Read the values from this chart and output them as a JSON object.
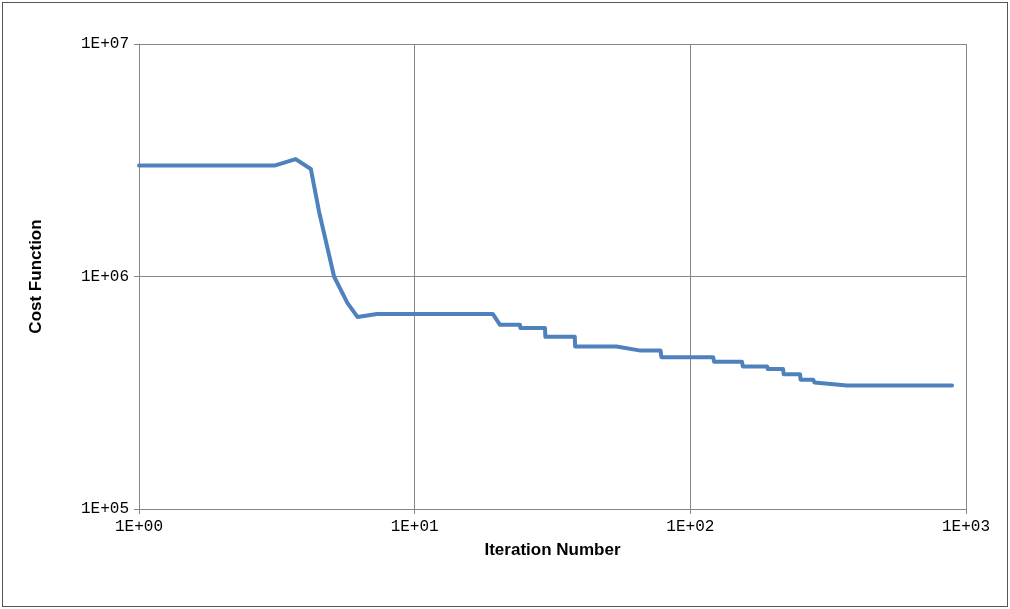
{
  "chart_data": {
    "type": "line",
    "xlabel": "Iteration Number",
    "ylabel": "Cost Function",
    "log": "xy",
    "grid": true,
    "marker": "none",
    "line_style": "solid",
    "xlim": [
      1,
      1000
    ],
    "xticks": [
      {
        "value": 1,
        "label": "1E+00"
      },
      {
        "value": 10,
        "label": "1E+01"
      },
      {
        "value": 100,
        "label": "1E+02"
      },
      {
        "value": 1000,
        "label": "1E+03"
      }
    ],
    "ylim": [
      100000,
      10000000
    ],
    "yticks": [
      {
        "value": 100000,
        "label": "1E+05"
      },
      {
        "value": 1000000,
        "label": "1E+06"
      },
      {
        "value": 10000000,
        "label": "1E+07"
      }
    ],
    "series": [
      {
        "color": "#4f81bd",
        "x": [
          1,
          3.1,
          3.7,
          4.2,
          4.5,
          5.1,
          5.7,
          6.2,
          7.3,
          19.2,
          20.4,
          24.1,
          24.2,
          29.7,
          29.8,
          38.1,
          38.2,
          54,
          66,
          78,
          78.5,
          121,
          122,
          154,
          155,
          190,
          191,
          217,
          218,
          250,
          251,
          279,
          282,
          370,
          890
        ],
        "values": [
          3000000,
          3000000,
          3200000,
          2900000,
          1900000,
          1000000,
          770000,
          670000,
          690000,
          690000,
          620000,
          620000,
          600000,
          600000,
          550000,
          550000,
          500000,
          500000,
          480000,
          480000,
          450000,
          450000,
          430000,
          430000,
          410000,
          410000,
          400000,
          400000,
          380000,
          380000,
          360000,
          360000,
          350000,
          340000,
          340000
        ]
      }
    ]
  }
}
